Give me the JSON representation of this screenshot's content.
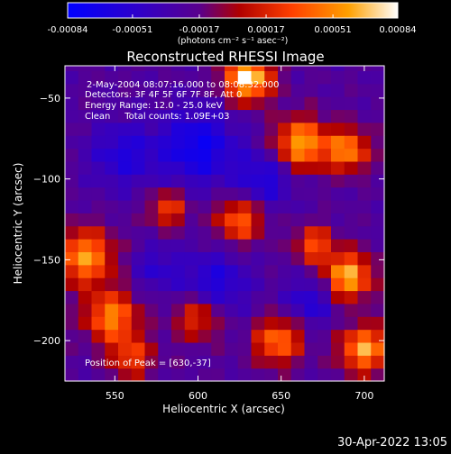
{
  "colorbar": {
    "tick_labels": [
      "-0.00084",
      "-0.00051",
      "-0.00017",
      "0.00017",
      "0.00051",
      "0.00084"
    ],
    "tick_values": [
      -0.00084,
      -0.00051,
      -0.00017,
      0.00017,
      0.00051,
      0.00084
    ],
    "range": [
      -0.00084,
      0.00084
    ],
    "unit_label": "(photons cm⁻² s⁻¹ asec⁻²)",
    "colors": [
      "#0000ff",
      "#5a008c",
      "#b00000",
      "#ff4000",
      "#ffa000",
      "#ffffff"
    ]
  },
  "chart_data": {
    "type": "heatmap",
    "title": "Reconstructed RHESSI Image",
    "xlabel": "Heliocentric X (arcsec)",
    "ylabel": "Heliocentric Y (arcsec)",
    "xlim": [
      520,
      712
    ],
    "ylim": [
      -225,
      -30
    ],
    "x_ticks": [
      550,
      600,
      650,
      700
    ],
    "x_tick_labels": [
      "550",
      "600",
      "650",
      "700"
    ],
    "y_ticks": [
      -50,
      -100,
      -150,
      -200
    ],
    "y_tick_labels": [
      "−50",
      "−100",
      "−150",
      "−200"
    ],
    "annotations": [
      "2-May-2004 08:07:16.000 to 08:08:32.000",
      "Detectors: 3F 4F 5F 6F 7F 8F, Att 0",
      "Energy Range: 12.0 - 25.0 keV",
      "Clean     Total counts: 1.09E+03",
      "Position of Peak = [630,-37]"
    ],
    "peak": {
      "x": 630,
      "y": -37
    },
    "grid_step_arcsec": 8,
    "z_range": [
      -0.00084,
      0.00084
    ],
    "hot_spots": [
      {
        "x": 630,
        "y": -37,
        "strength": 1.0,
        "radius": 10
      },
      {
        "x": 662,
        "y": -78,
        "strength": 0.8,
        "radius": 11
      },
      {
        "x": 690,
        "y": -82,
        "strength": 0.7,
        "radius": 9
      },
      {
        "x": 532,
        "y": -148,
        "strength": 0.75,
        "radius": 12
      },
      {
        "x": 548,
        "y": -185,
        "strength": 0.7,
        "radius": 11
      },
      {
        "x": 690,
        "y": -160,
        "strength": 0.85,
        "radius": 10
      },
      {
        "x": 700,
        "y": -205,
        "strength": 0.8,
        "radius": 10
      },
      {
        "x": 648,
        "y": -200,
        "strength": 0.65,
        "radius": 10
      },
      {
        "x": 625,
        "y": -125,
        "strength": 0.6,
        "radius": 10
      },
      {
        "x": 582,
        "y": -118,
        "strength": 0.5,
        "radius": 8
      },
      {
        "x": 600,
        "y": -185,
        "strength": 0.5,
        "radius": 10
      },
      {
        "x": 670,
        "y": -140,
        "strength": 0.55,
        "radius": 8
      },
      {
        "x": 560,
        "y": -210,
        "strength": 0.5,
        "radius": 9
      }
    ],
    "cold_spots": [
      {
        "x": 600,
        "y": -80,
        "strength": 0.8,
        "radius": 16
      },
      {
        "x": 555,
        "y": -85,
        "strength": 0.55,
        "radius": 14
      },
      {
        "x": 640,
        "y": -100,
        "strength": 0.6,
        "radius": 12
      },
      {
        "x": 610,
        "y": -165,
        "strength": 0.6,
        "radius": 14
      },
      {
        "x": 668,
        "y": -175,
        "strength": 0.55,
        "radius": 10
      },
      {
        "x": 575,
        "y": -155,
        "strength": 0.4,
        "radius": 10
      }
    ]
  },
  "footer": {
    "timestamp": "30-Apr-2022 13:05"
  }
}
